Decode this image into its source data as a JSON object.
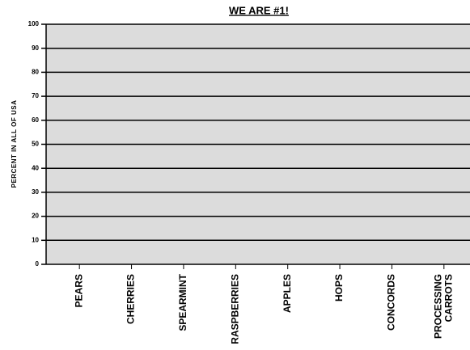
{
  "chart_data": {
    "type": "bar",
    "title": "WE ARE #1!",
    "y_label": "PERCENT IN ALL OF USA",
    "categories": [
      "PEARS",
      "CHERRIES",
      "SPEARMINT",
      "RASPBERRIES",
      "APPLES",
      "HOPS",
      "CONCORDS",
      "PROCESSING CARROTS"
    ],
    "ylim": [
      0,
      100
    ],
    "yticks": [
      0,
      10,
      20,
      30,
      40,
      50,
      60,
      70,
      80,
      90,
      100
    ],
    "grid": true
  }
}
